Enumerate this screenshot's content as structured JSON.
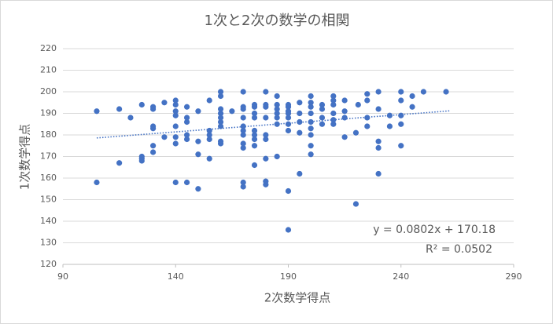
{
  "chart_data": {
    "type": "scatter",
    "title": "1次と2次の数学の相関",
    "x_label": "2次数学得点",
    "y_label": "1次数学得点",
    "color": "#4472c4",
    "x": [
      105,
      105,
      115,
      115,
      120,
      125,
      125,
      125,
      125,
      130,
      130,
      130,
      130,
      130,
      130,
      135,
      135,
      140,
      140,
      140,
      140,
      140,
      140,
      140,
      140,
      145,
      145,
      145,
      145,
      145,
      145,
      150,
      150,
      150,
      150,
      155,
      155,
      155,
      155,
      155,
      160,
      160,
      160,
      160,
      160,
      160,
      160,
      160,
      160,
      165,
      170,
      170,
      170,
      170,
      170,
      170,
      170,
      170,
      170,
      170,
      170,
      175,
      175,
      175,
      175,
      175,
      175,
      175,
      175,
      175,
      180,
      180,
      180,
      180,
      180,
      180,
      180,
      180,
      180,
      185,
      185,
      185,
      185,
      185,
      185,
      185,
      190,
      190,
      190,
      190,
      190,
      190,
      190,
      190,
      190,
      195,
      195,
      195,
      195,
      195,
      200,
      200,
      200,
      200,
      200,
      200,
      200,
      200,
      200,
      205,
      205,
      205,
      205,
      210,
      210,
      210,
      210,
      210,
      210,
      215,
      215,
      215,
      215,
      220,
      220,
      221,
      225,
      225,
      225,
      225,
      230,
      230,
      230,
      230,
      230,
      235,
      235,
      240,
      240,
      240,
      240,
      240,
      245,
      245,
      250,
      260
    ],
    "values": [
      191,
      158,
      192,
      167,
      188,
      194,
      170,
      168,
      169,
      193,
      192,
      184,
      183,
      175,
      172,
      195,
      179,
      196,
      194,
      191,
      189,
      184,
      179,
      176,
      158,
      193,
      188,
      186,
      180,
      178,
      158,
      191,
      177,
      171,
      155,
      196,
      182,
      180,
      178,
      169,
      200,
      198,
      192,
      190,
      188,
      186,
      184,
      177,
      176,
      191,
      200,
      193,
      192,
      188,
      184,
      182,
      180,
      176,
      174,
      158,
      156,
      194,
      193,
      190,
      188,
      182,
      180,
      178,
      175,
      166,
      200,
      194,
      193,
      188,
      180,
      178,
      169,
      158.5,
      157,
      198,
      194,
      192,
      190,
      188,
      185,
      170,
      194,
      193,
      191,
      190,
      188,
      185,
      182,
      154,
      136,
      195,
      190,
      186,
      181,
      162,
      198,
      195,
      193,
      190,
      186,
      183,
      180,
      175,
      171,
      194,
      192,
      188,
      185,
      198,
      196,
      194,
      190,
      187,
      185,
      196,
      191,
      188,
      179,
      181,
      148,
      194,
      199,
      196,
      188,
      184,
      200,
      192,
      177,
      174,
      162,
      189,
      184,
      200,
      196,
      189,
      185,
      175,
      198,
      193,
      200,
      200
    ],
    "xlim": [
      90,
      290
    ],
    "xticks": [
      90,
      140,
      190,
      240,
      290
    ],
    "ylim": [
      120,
      220
    ],
    "yticks": [
      120,
      130,
      140,
      150,
      160,
      170,
      180,
      190,
      200,
      210,
      220
    ],
    "grid": true,
    "trendline": {
      "label": "y = 0.0802x + 170.18",
      "r2_label": "R² = 0.0502",
      "slope": 0.0802,
      "intercept": 170.18,
      "x_start": 105,
      "x_end": 262
    }
  }
}
